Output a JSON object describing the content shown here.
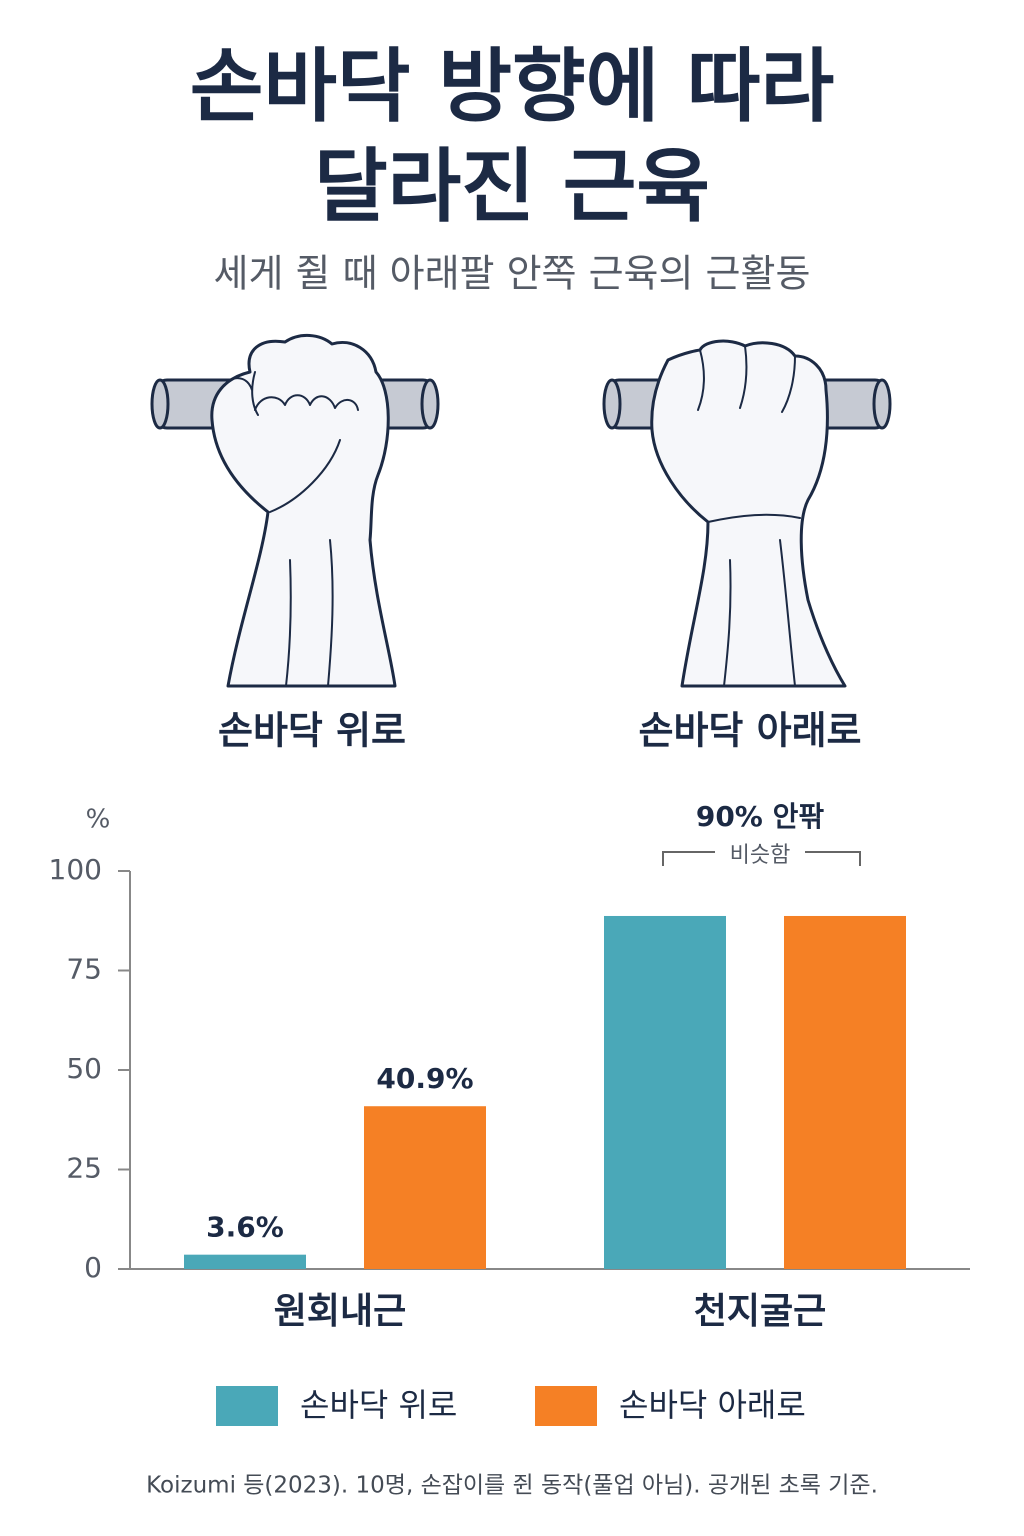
{
  "title": [
    "손바닥 방향에 따라",
    "달라진 근육"
  ],
  "subtitle": "세게 쥘 때 아래팔 안쪽 근육의 근활동",
  "illustrations": {
    "labels": [
      "손바닥 위로",
      "손바닥 아래로"
    ]
  },
  "chart_data": {
    "type": "bar",
    "y_label": "%",
    "categories": [
      "원회내근",
      "천지굴근"
    ],
    "series": [
      {
        "name": "손바닥 위로",
        "color": "#4aa8b8",
        "values": [
          3.6,
          88.7
        ],
        "value_labels": [
          "3.6%",
          null
        ]
      },
      {
        "name": "손바닥 아래로",
        "color": "#f58025",
        "values": [
          40.9,
          88.7
        ],
        "value_labels": [
          "40.9%",
          null
        ]
      }
    ],
    "ylim": [
      0,
      100
    ],
    "yticks": [
      0,
      25,
      50,
      75,
      100
    ],
    "annotation": {
      "title": "90% 안팎",
      "text": "비슷함"
    },
    "legend": "bottom"
  },
  "footnote": "Koizumi 등(2023). 10명, 손잡이를 쥔 동작(풀업 아님). 공개된 초록 기준."
}
